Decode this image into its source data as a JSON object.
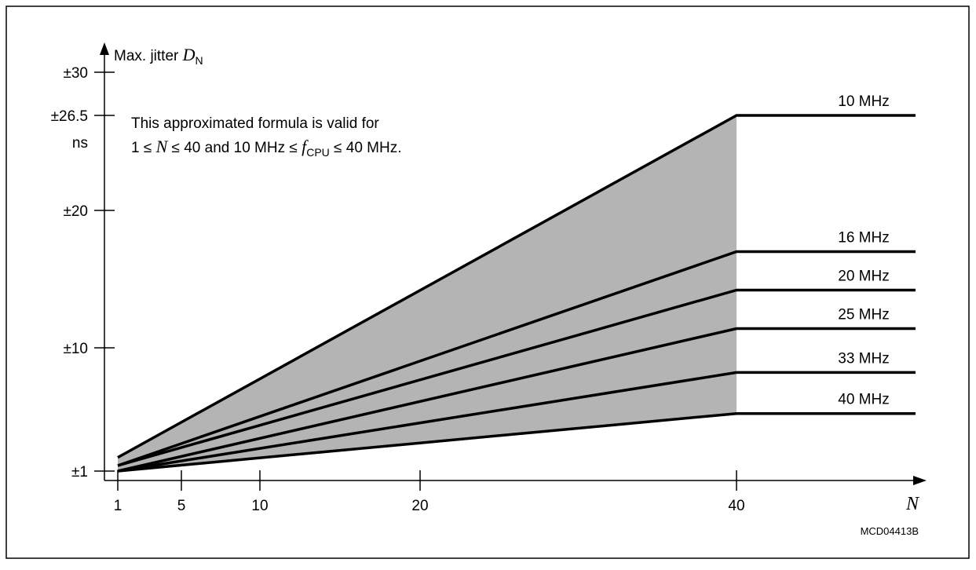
{
  "chart_data": {
    "type": "line",
    "ylabel": {
      "prefix": "Max. jitter ",
      "symbol": "D",
      "subscript": "N"
    },
    "y_unit": "ns",
    "xlabel": "N",
    "figure_code": "MCD04413B",
    "note": {
      "line1": "This approximated formula is valid for",
      "line2": {
        "a": "1 ≤ ",
        "n": "N",
        "b": " ≤ 40 and 10 MHz ≤ ",
        "f": "f",
        "sub": "CPU",
        "c": " ≤ 40 MHz."
      }
    },
    "x_ticks": [
      1,
      5,
      10,
      20,
      40
    ],
    "y_ticks": [
      {
        "value": 1,
        "label": "±1"
      },
      {
        "value": 10,
        "label": "±10"
      },
      {
        "value": 20,
        "label": "±20"
      },
      {
        "value": 26.5,
        "label": "±26.5"
      },
      {
        "value": 30,
        "label": "±30"
      }
    ],
    "xlim": [
      0.7,
      51
    ],
    "ylim": [
      0.5,
      31
    ],
    "series": [
      {
        "name": "10 MHz",
        "x": [
          1,
          40,
          51
        ],
        "y": [
          2.0,
          26.5,
          26.5
        ]
      },
      {
        "name": "16 MHz",
        "x": [
          1,
          40,
          51
        ],
        "y": [
          1.4,
          17.0,
          17.0
        ]
      },
      {
        "name": "20 MHz",
        "x": [
          1,
          40,
          51
        ],
        "y": [
          1.4,
          14.2,
          14.2
        ]
      },
      {
        "name": "25 MHz",
        "x": [
          1,
          40,
          51
        ],
        "y": [
          1.0,
          11.4,
          11.4
        ]
      },
      {
        "name": "33 MHz",
        "x": [
          1,
          40,
          51
        ],
        "y": [
          1.0,
          8.2,
          8.2
        ]
      },
      {
        "name": "40 MHz",
        "x": [
          1,
          40,
          51
        ],
        "y": [
          1.0,
          5.2,
          5.2
        ]
      }
    ],
    "colors": {
      "line": "#000000",
      "fill": "#b4b4b4",
      "frame": "#000000"
    },
    "grid": false,
    "legend": "inline labels at right"
  }
}
